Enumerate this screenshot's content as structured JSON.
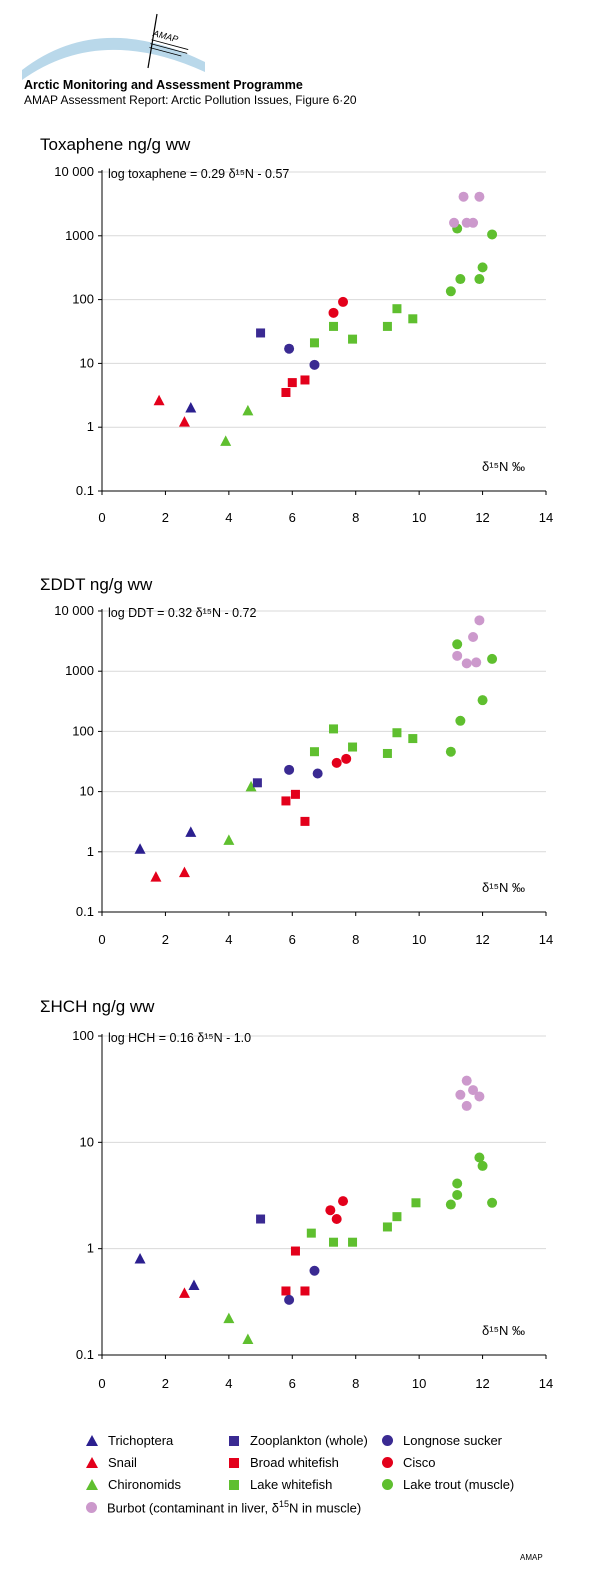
{
  "header": {
    "org_name": "Arctic Monitoring and Assessment Programme",
    "report_line": "AMAP Assessment Report: Arctic Pollution Issues, Figure 6·20",
    "logo_text": "AMAP"
  },
  "colors": {
    "trichoptera": "#2b1f8f",
    "snail": "#e3001b",
    "chironomids": "#5fbf2f",
    "zooplankton": "#3a2a92",
    "broad_whitefish": "#e3001b",
    "lake_whitefish": "#5fbf2f",
    "longnose_sucker": "#3a2a92",
    "cisco": "#e3001b",
    "lake_trout": "#5fbf2f",
    "burbot": "#cc99cc",
    "logo_arc": "#b9d8ea"
  },
  "chart_data": [
    {
      "type": "scatter",
      "title": "Toxaphene ng/g ww",
      "equation": "log toxaphene = 0.29 δ¹⁵N - 0.57",
      "xlabel": "δ¹⁵N ‰",
      "xlim": [
        0,
        14
      ],
      "ylim": [
        0.1,
        10000
      ],
      "yscale": "log",
      "x_ticks": [
        "0",
        "2",
        "4",
        "6",
        "8",
        "10",
        "12",
        "14"
      ],
      "y_ticks": [
        "0.1",
        "1",
        "10",
        "100",
        "1000",
        "10 000"
      ],
      "grid": "horizontal",
      "series": [
        {
          "name": "Trichoptera",
          "marker": "triangle",
          "color_key": "trichoptera",
          "points": [
            [
              2.8,
              2.0
            ]
          ]
        },
        {
          "name": "Snail",
          "marker": "triangle",
          "color_key": "snail",
          "points": [
            [
              1.8,
              2.6
            ],
            [
              2.6,
              1.2
            ]
          ]
        },
        {
          "name": "Chironomids",
          "marker": "triangle",
          "color_key": "chironomids",
          "points": [
            [
              3.9,
              0.6
            ],
            [
              4.6,
              1.8
            ]
          ]
        },
        {
          "name": "Zooplankton (whole)",
          "marker": "square",
          "color_key": "zooplankton",
          "points": [
            [
              5.0,
              30
            ]
          ]
        },
        {
          "name": "Broad whitefish",
          "marker": "square",
          "color_key": "broad_whitefish",
          "points": [
            [
              5.8,
              3.5
            ],
            [
              6.0,
              5.0
            ],
            [
              6.4,
              5.5
            ]
          ]
        },
        {
          "name": "Lake whitefish",
          "marker": "square",
          "color_key": "lake_whitefish",
          "points": [
            [
              6.7,
              21
            ],
            [
              7.3,
              38
            ],
            [
              7.9,
              24
            ],
            [
              9.0,
              38
            ],
            [
              9.3,
              72
            ],
            [
              9.8,
              50
            ]
          ]
        },
        {
          "name": "Longnose sucker",
          "marker": "circle",
          "color_key": "longnose_sucker",
          "points": [
            [
              5.9,
              17
            ],
            [
              6.7,
              9.5
            ]
          ]
        },
        {
          "name": "Cisco",
          "marker": "circle",
          "color_key": "cisco",
          "points": [
            [
              7.3,
              62
            ],
            [
              7.6,
              92
            ]
          ]
        },
        {
          "name": "Lake trout (muscle)",
          "marker": "circle",
          "color_key": "lake_trout",
          "points": [
            [
              11.0,
              135
            ],
            [
              11.2,
              1300
            ],
            [
              11.3,
              210
            ],
            [
              11.9,
              210
            ],
            [
              12.0,
              320
            ],
            [
              12.3,
              1050
            ]
          ]
        },
        {
          "name": "Burbot (contaminant in liver, δ¹⁵N in muscle)",
          "marker": "circle",
          "color_key": "burbot",
          "points": [
            [
              11.1,
              1600
            ],
            [
              11.4,
              4100
            ],
            [
              11.5,
              1600
            ],
            [
              11.7,
              1600
            ],
            [
              11.9,
              4100
            ]
          ]
        }
      ]
    },
    {
      "type": "scatter",
      "title": "ΣDDT ng/g ww",
      "equation": "log DDT = 0.32 δ¹⁵N - 0.72",
      "xlabel": "δ¹⁵N ‰",
      "xlim": [
        0,
        14
      ],
      "ylim": [
        0.1,
        10000
      ],
      "yscale": "log",
      "x_ticks": [
        "0",
        "2",
        "4",
        "6",
        "8",
        "10",
        "12",
        "14"
      ],
      "y_ticks": [
        "0.1",
        "1",
        "10",
        "100",
        "1000",
        "10 000"
      ],
      "grid": "horizontal",
      "series": [
        {
          "name": "Trichoptera",
          "marker": "triangle",
          "color_key": "trichoptera",
          "points": [
            [
              1.2,
              1.1
            ],
            [
              2.8,
              2.1
            ]
          ]
        },
        {
          "name": "Snail",
          "marker": "triangle",
          "color_key": "snail",
          "points": [
            [
              1.7,
              0.38
            ],
            [
              2.6,
              0.45
            ]
          ]
        },
        {
          "name": "Chironomids",
          "marker": "triangle",
          "color_key": "chironomids",
          "points": [
            [
              4.0,
              1.55
            ],
            [
              4.7,
              12
            ]
          ]
        },
        {
          "name": "Zooplankton (whole)",
          "marker": "square",
          "color_key": "zooplankton",
          "points": [
            [
              4.9,
              14
            ]
          ]
        },
        {
          "name": "Broad whitefish",
          "marker": "square",
          "color_key": "broad_whitefish",
          "points": [
            [
              5.8,
              7
            ],
            [
              6.1,
              9
            ],
            [
              6.4,
              3.2
            ]
          ]
        },
        {
          "name": "Lake whitefish",
          "marker": "square",
          "color_key": "lake_whitefish",
          "points": [
            [
              6.7,
              46
            ],
            [
              7.3,
              110
            ],
            [
              7.9,
              55
            ],
            [
              9.0,
              43
            ],
            [
              9.3,
              95
            ],
            [
              9.8,
              76
            ]
          ]
        },
        {
          "name": "Longnose sucker",
          "marker": "circle",
          "color_key": "longnose_sucker",
          "points": [
            [
              5.9,
              23
            ],
            [
              6.8,
              20
            ]
          ]
        },
        {
          "name": "Cisco",
          "marker": "circle",
          "color_key": "cisco",
          "points": [
            [
              7.4,
              30
            ],
            [
              7.7,
              35
            ]
          ]
        },
        {
          "name": "Lake trout (muscle)",
          "marker": "circle",
          "color_key": "lake_trout",
          "points": [
            [
              11.0,
              46
            ],
            [
              11.2,
              2800
            ],
            [
              11.3,
              150
            ],
            [
              12.0,
              330
            ],
            [
              12.3,
              1600
            ]
          ]
        },
        {
          "name": "Burbot (contaminant in liver, δ¹⁵N in muscle)",
          "marker": "circle",
          "color_key": "burbot",
          "points": [
            [
              11.2,
              1800
            ],
            [
              11.5,
              1350
            ],
            [
              11.7,
              3700
            ],
            [
              11.8,
              1400
            ],
            [
              11.9,
              7000
            ]
          ]
        }
      ]
    },
    {
      "type": "scatter",
      "title": "ΣHCH ng/g ww",
      "equation": "log HCH = 0.16 δ¹⁵N - 1.0",
      "xlabel": "δ¹⁵N ‰",
      "xlim": [
        0,
        14
      ],
      "ylim": [
        0.1,
        100
      ],
      "yscale": "log",
      "x_ticks": [
        "0",
        "2",
        "4",
        "6",
        "8",
        "10",
        "12",
        "14"
      ],
      "y_ticks": [
        "0.1",
        "1",
        "10",
        "100"
      ],
      "grid": "horizontal",
      "series": [
        {
          "name": "Trichoptera",
          "marker": "triangle",
          "color_key": "trichoptera",
          "points": [
            [
              1.2,
              0.8
            ],
            [
              2.9,
              0.45
            ]
          ]
        },
        {
          "name": "Snail",
          "marker": "triangle",
          "color_key": "snail",
          "points": [
            [
              2.6,
              0.38
            ]
          ]
        },
        {
          "name": "Chironomids",
          "marker": "triangle",
          "color_key": "chironomids",
          "points": [
            [
              4.0,
              0.22
            ],
            [
              4.6,
              0.14
            ]
          ]
        },
        {
          "name": "Zooplankton (whole)",
          "marker": "square",
          "color_key": "zooplankton",
          "points": [
            [
              5.0,
              1.9
            ]
          ]
        },
        {
          "name": "Broad whitefish",
          "marker": "square",
          "color_key": "broad_whitefish",
          "points": [
            [
              5.8,
              0.4
            ],
            [
              6.1,
              0.95
            ],
            [
              6.4,
              0.4
            ]
          ]
        },
        {
          "name": "Lake whitefish",
          "marker": "square",
          "color_key": "lake_whitefish",
          "points": [
            [
              6.6,
              1.4
            ],
            [
              7.3,
              1.15
            ],
            [
              7.9,
              1.15
            ],
            [
              9.0,
              1.6
            ],
            [
              9.3,
              2.0
            ],
            [
              9.9,
              2.7
            ]
          ]
        },
        {
          "name": "Longnose sucker",
          "marker": "circle",
          "color_key": "longnose_sucker",
          "points": [
            [
              5.9,
              0.33
            ],
            [
              6.7,
              0.62
            ]
          ]
        },
        {
          "name": "Cisco",
          "marker": "circle",
          "color_key": "cisco",
          "points": [
            [
              7.2,
              2.3
            ],
            [
              7.4,
              1.9
            ],
            [
              7.6,
              2.8
            ]
          ]
        },
        {
          "name": "Lake trout (muscle)",
          "marker": "circle",
          "color_key": "lake_trout",
          "points": [
            [
              11.0,
              2.6
            ],
            [
              11.2,
              4.1
            ],
            [
              11.2,
              3.2
            ],
            [
              11.9,
              7.2
            ],
            [
              12.0,
              6.0
            ],
            [
              12.3,
              2.7
            ]
          ]
        },
        {
          "name": "Burbot (contaminant in liver, δ¹⁵N in muscle)",
          "marker": "circle",
          "color_key": "burbot",
          "points": [
            [
              11.3,
              28
            ],
            [
              11.5,
              38
            ],
            [
              11.5,
              22
            ],
            [
              11.7,
              31
            ],
            [
              11.9,
              27
            ]
          ]
        }
      ]
    }
  ],
  "legend": {
    "items": [
      {
        "label": "Trichoptera",
        "marker": "triangle",
        "color_key": "trichoptera"
      },
      {
        "label": "Zooplankton (whole)",
        "marker": "square",
        "color_key": "zooplankton"
      },
      {
        "label": "Longnose sucker",
        "marker": "circle",
        "color_key": "longnose_sucker"
      },
      {
        "label": "Snail",
        "marker": "triangle",
        "color_key": "snail"
      },
      {
        "label": "Broad whitefish",
        "marker": "square",
        "color_key": "broad_whitefish"
      },
      {
        "label": "Cisco",
        "marker": "circle",
        "color_key": "cisco"
      },
      {
        "label": "Chironomids",
        "marker": "triangle",
        "color_key": "chironomids"
      },
      {
        "label": "Lake whitefish",
        "marker": "square",
        "color_key": "lake_whitefish"
      },
      {
        "label": "Lake trout (muscle)",
        "marker": "circle",
        "color_key": "lake_trout"
      }
    ],
    "burbot": {
      "label_prefix": "Burbot (contaminant in liver, δ",
      "label_sup": "15",
      "label_suffix": "N in muscle)",
      "marker": "circle",
      "color_key": "burbot"
    }
  },
  "footer": {
    "mark": "AMAP"
  }
}
